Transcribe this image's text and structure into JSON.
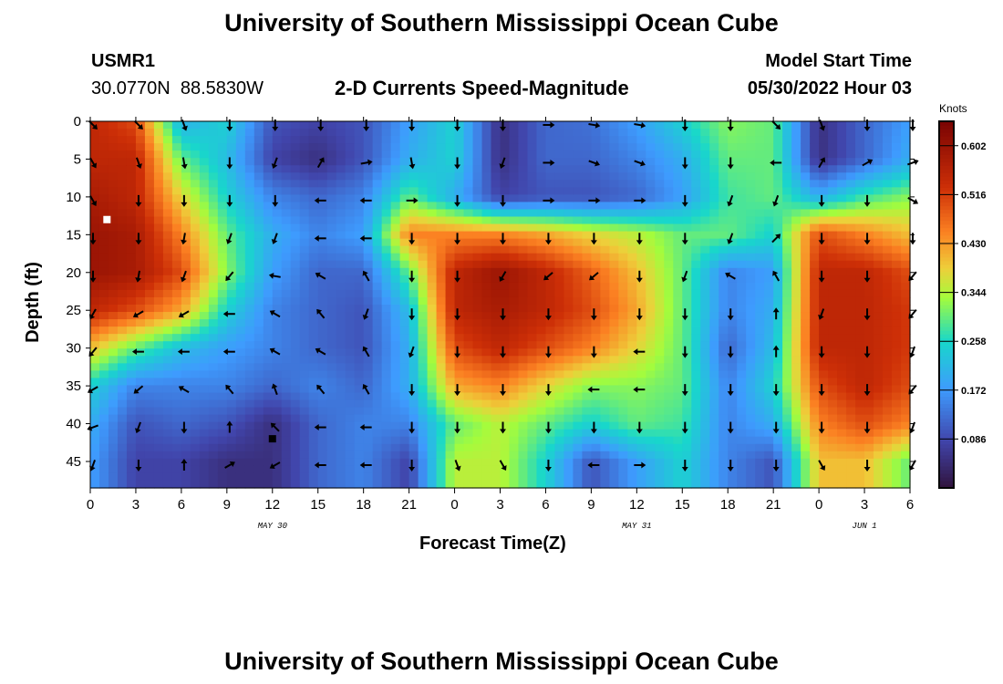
{
  "chart_data": {
    "type": "heatmap",
    "title": "University of Southern Mississippi Ocean Cube",
    "subtitle": "2-D Currents Speed-Magnitude",
    "station": "USMR1",
    "location": "30.0770N  88.5830W",
    "model_start_label": "Model Start Time",
    "model_start": "05/30/2022 Hour 03",
    "xlabel": "Forecast Time(Z)",
    "ylabel": "Depth (ft)",
    "x_hours": [
      0,
      3,
      6,
      9,
      12,
      15,
      18,
      21,
      24,
      27,
      30,
      33,
      36,
      39,
      42,
      45,
      48,
      51,
      54
    ],
    "x_tick_labels": [
      "0",
      "3",
      "6",
      "9",
      "12",
      "15",
      "18",
      "21",
      "0",
      "3",
      "6",
      "9",
      "12",
      "15",
      "18",
      "21",
      "0",
      "3",
      "6"
    ],
    "date_labels": [
      {
        "text": "MAY 30",
        "hour": 12
      },
      {
        "text": "MAY 31",
        "hour": 36
      },
      {
        "text": "JUN 1",
        "hour": 51
      }
    ],
    "y_depths": [
      0,
      5,
      10,
      15,
      20,
      25,
      30,
      35,
      40,
      45
    ],
    "y_tick_labels": [
      "0",
      "5",
      "10",
      "15",
      "20",
      "25",
      "30",
      "35",
      "40",
      "45"
    ],
    "ylim": [
      0,
      48.5
    ],
    "xlim": [
      0,
      54
    ],
    "colorbar": {
      "label": "Knots",
      "ticks": [
        "0.086",
        "0.172",
        "0.258",
        "0.344",
        "0.430",
        "0.516",
        "0.602"
      ],
      "range": [
        0,
        0.645
      ]
    },
    "speed_knots": [
      [
        0.55,
        0.5,
        0.2,
        0.25,
        0.1,
        0.08,
        0.1,
        0.18,
        0.25,
        0.05,
        0.12,
        0.13,
        0.18,
        0.25,
        0.32,
        0.3,
        0.05,
        0.12,
        0.18
      ],
      [
        0.55,
        0.55,
        0.3,
        0.22,
        0.08,
        0.05,
        0.1,
        0.2,
        0.25,
        0.05,
        0.12,
        0.12,
        0.15,
        0.2,
        0.3,
        0.3,
        0.05,
        0.12,
        0.2
      ],
      [
        0.58,
        0.55,
        0.38,
        0.25,
        0.15,
        0.12,
        0.15,
        0.3,
        0.2,
        0.08,
        0.1,
        0.1,
        0.12,
        0.18,
        0.28,
        0.3,
        0.2,
        0.28,
        0.32
      ],
      [
        0.6,
        0.58,
        0.45,
        0.3,
        0.2,
        0.15,
        0.18,
        0.45,
        0.45,
        0.45,
        0.42,
        0.38,
        0.35,
        0.3,
        0.3,
        0.25,
        0.5,
        0.45,
        0.4
      ],
      [
        0.6,
        0.58,
        0.5,
        0.32,
        0.18,
        0.12,
        0.12,
        0.3,
        0.55,
        0.6,
        0.55,
        0.48,
        0.4,
        0.3,
        0.15,
        0.18,
        0.55,
        0.55,
        0.5
      ],
      [
        0.55,
        0.5,
        0.42,
        0.25,
        0.15,
        0.12,
        0.1,
        0.22,
        0.55,
        0.58,
        0.55,
        0.5,
        0.42,
        0.3,
        0.15,
        0.2,
        0.55,
        0.55,
        0.52
      ],
      [
        0.4,
        0.3,
        0.22,
        0.18,
        0.15,
        0.12,
        0.1,
        0.2,
        0.5,
        0.55,
        0.5,
        0.45,
        0.38,
        0.3,
        0.12,
        0.22,
        0.55,
        0.55,
        0.52
      ],
      [
        0.25,
        0.15,
        0.15,
        0.15,
        0.12,
        0.15,
        0.12,
        0.2,
        0.42,
        0.45,
        0.38,
        0.32,
        0.32,
        0.3,
        0.15,
        0.25,
        0.5,
        0.55,
        0.5
      ],
      [
        0.2,
        0.1,
        0.12,
        0.1,
        0.05,
        0.12,
        0.15,
        0.15,
        0.3,
        0.35,
        0.3,
        0.25,
        0.3,
        0.28,
        0.15,
        0.2,
        0.45,
        0.5,
        0.45
      ],
      [
        0.18,
        0.08,
        0.08,
        0.05,
        0.05,
        0.12,
        0.15,
        0.08,
        0.35,
        0.35,
        0.25,
        0.1,
        0.18,
        0.25,
        0.15,
        0.1,
        0.4,
        0.4,
        0.3
      ]
    ],
    "direction_deg": [
      [
        135,
        135,
        160,
        180,
        180,
        180,
        180,
        180,
        180,
        180,
        90,
        100,
        100,
        180,
        180,
        135,
        160,
        180,
        180
      ],
      [
        150,
        160,
        170,
        180,
        200,
        30,
        80,
        170,
        180,
        200,
        90,
        110,
        110,
        180,
        180,
        270,
        30,
        60,
        70
      ],
      [
        150,
        180,
        180,
        180,
        180,
        270,
        270,
        90,
        180,
        180,
        90,
        90,
        90,
        180,
        200,
        200,
        180,
        180,
        120
      ],
      [
        180,
        180,
        190,
        200,
        200,
        270,
        270,
        180,
        180,
        180,
        180,
        180,
        180,
        180,
        200,
        45,
        180,
        180,
        180
      ],
      [
        180,
        190,
        200,
        220,
        280,
        300,
        330,
        180,
        180,
        210,
        230,
        230,
        180,
        200,
        300,
        330,
        180,
        180,
        220
      ],
      [
        210,
        240,
        240,
        270,
        300,
        320,
        200,
        180,
        180,
        180,
        180,
        180,
        180,
        180,
        180,
        0,
        200,
        180,
        220
      ],
      [
        220,
        270,
        270,
        270,
        300,
        300,
        330,
        200,
        180,
        180,
        180,
        180,
        270,
        180,
        180,
        0,
        180,
        180,
        200
      ],
      [
        240,
        230,
        300,
        320,
        340,
        320,
        330,
        180,
        180,
        180,
        180,
        270,
        270,
        180,
        180,
        180,
        180,
        180,
        220
      ],
      [
        250,
        200,
        180,
        0,
        315,
        270,
        270,
        180,
        180,
        180,
        180,
        180,
        180,
        180,
        180,
        180,
        180,
        180,
        200
      ],
      [
        200,
        180,
        0,
        60,
        240,
        270,
        270,
        180,
        160,
        150,
        180,
        270,
        90,
        180,
        180,
        180,
        150,
        180,
        210
      ]
    ],
    "markers": [
      {
        "color": "#ffffff",
        "hour": 1.1,
        "depth": 13
      },
      {
        "color": "#000000",
        "hour": 12,
        "depth": 42
      }
    ]
  },
  "footer_title": "University of Southern Mississippi Ocean Cube"
}
